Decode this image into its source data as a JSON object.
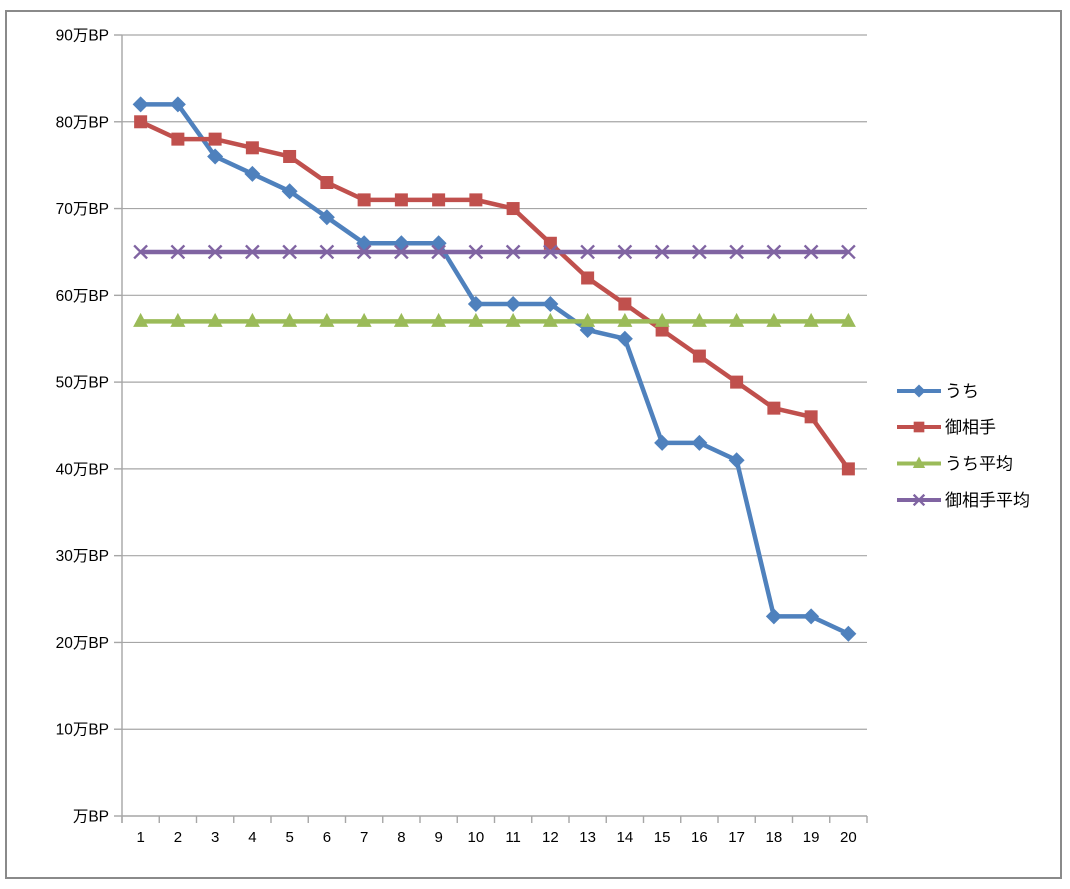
{
  "window": {
    "background_color": "#FFFFFF",
    "border_color": "#8A8A8A"
  },
  "chart_data": {
    "type": "line",
    "title": "",
    "xlabel": "",
    "ylabel": "",
    "x": [
      1,
      2,
      3,
      4,
      5,
      6,
      7,
      8,
      9,
      10,
      11,
      12,
      13,
      14,
      15,
      16,
      17,
      18,
      19,
      20
    ],
    "x_tick_labels": [
      "1",
      "2",
      "3",
      "4",
      "5",
      "6",
      "7",
      "8",
      "9",
      "10",
      "11",
      "12",
      "13",
      "14",
      "15",
      "16",
      "17",
      "18",
      "19",
      "20"
    ],
    "ylim": [
      0,
      90
    ],
    "y_tick_step": 10,
    "y_unit_suffix": "万BP",
    "y_tick_labels": [
      "万BP",
      "10万BP",
      "20万BP",
      "30万BP",
      "40万BP",
      "50万BP",
      "60万BP",
      "70万BP",
      "80万BP",
      "90万BP"
    ],
    "grid": true,
    "legend_position": "right",
    "series": [
      {
        "key": "uchi",
        "name": "うち",
        "marker": "diamond",
        "color": "#4F81BD",
        "values": [
          82,
          82,
          76,
          74,
          72,
          69,
          66,
          66,
          66,
          59,
          59,
          59,
          56,
          55,
          43,
          43,
          41,
          23,
          23,
          21
        ]
      },
      {
        "key": "oaite",
        "name": "御相手",
        "marker": "square",
        "color": "#C0504D",
        "values": [
          80,
          78,
          78,
          77,
          76,
          73,
          71,
          71,
          71,
          71,
          70,
          66,
          62,
          59,
          56,
          53,
          50,
          47,
          46,
          40
        ]
      },
      {
        "key": "uchi-heikin",
        "name": "うち平均",
        "marker": "triangle",
        "color": "#9BBB59",
        "values": [
          57,
          57,
          57,
          57,
          57,
          57,
          57,
          57,
          57,
          57,
          57,
          57,
          57,
          57,
          57,
          57,
          57,
          57,
          57,
          57
        ]
      },
      {
        "key": "oaite-heikin",
        "name": "御相手平均",
        "marker": "x",
        "color": "#8064A2",
        "values": [
          65,
          65,
          65,
          65,
          65,
          65,
          65,
          65,
          65,
          65,
          65,
          65,
          65,
          65,
          65,
          65,
          65,
          65,
          65,
          65
        ]
      }
    ]
  },
  "colors": {
    "gridline": "#A6A6A6",
    "axis_line": "#A6A6A6",
    "tick_text": "#000000",
    "series_blue": "#4F81BD",
    "series_red": "#C0504D",
    "series_green": "#9BBB59",
    "series_purple": "#8064A2"
  }
}
